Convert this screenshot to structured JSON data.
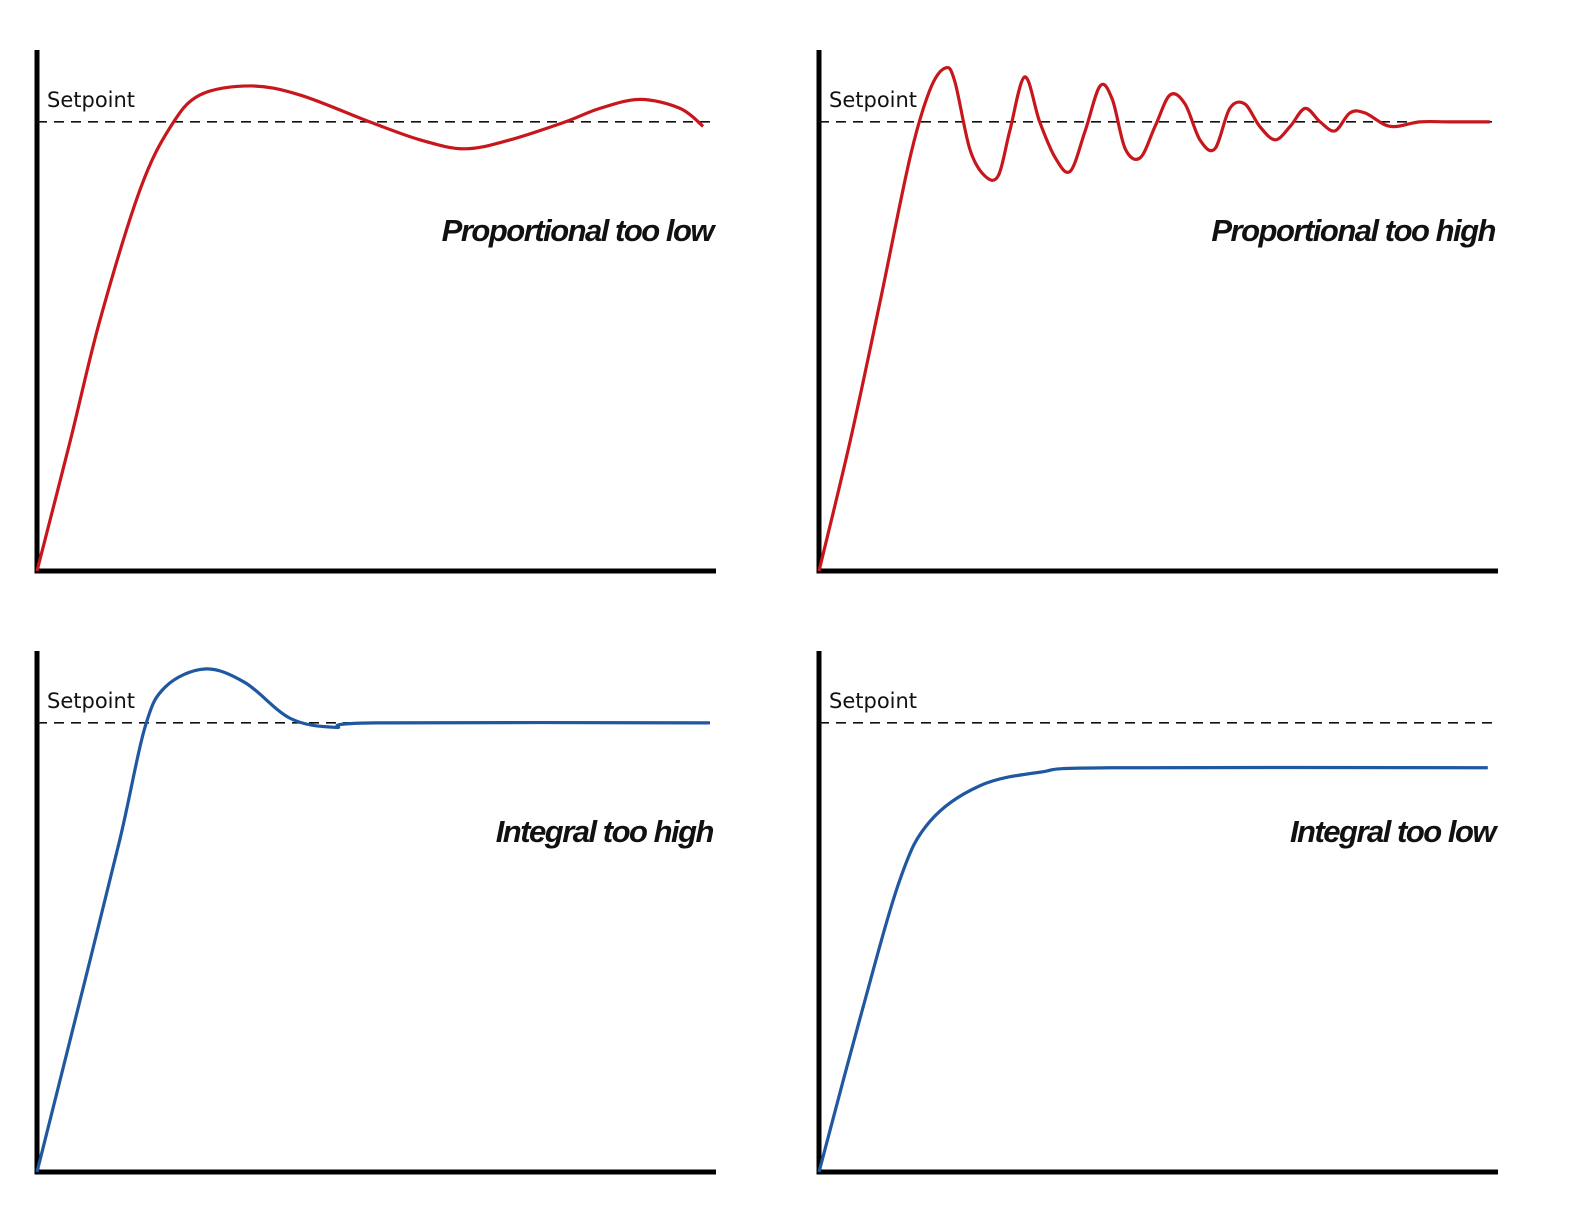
{
  "chart_data": [
    {
      "type": "line",
      "setpoint_label": "Setpoint",
      "setpoint": 1,
      "annotation": "Proportional too low",
      "xlim": [
        0,
        10
      ],
      "ylim": [
        0,
        1.16
      ],
      "x": [
        0,
        0.49,
        0.93,
        1.52,
        1.97,
        2.4,
        3.14,
        3.87,
        4.9,
        5.64,
        6.3,
        6.97,
        7.78,
        8.29,
        8.88,
        9.47,
        9.81
      ],
      "series": [
        {
          "color": "#c8161d",
          "values": [
            0,
            0.29,
            0.56,
            0.85,
            0.99,
            1.06,
            1.08,
            1.06,
            1.0,
            0.96,
            0.94,
            0.96,
            1.0,
            1.03,
            1.05,
            1.03,
            0.99
          ]
        }
      ]
    },
    {
      "type": "line",
      "setpoint_label": "Setpoint",
      "setpoint": 1,
      "annotation": "Proportional too high",
      "xlim": [
        0,
        10
      ],
      "ylim": [
        0,
        1.16
      ],
      "x": [
        0,
        0.46,
        0.9,
        1.34,
        1.63,
        1.86,
        2.0,
        2.22,
        2.44,
        2.64,
        2.81,
        3.03,
        3.25,
        3.48,
        3.7,
        3.92,
        4.14,
        4.32,
        4.51,
        4.73,
        4.95,
        5.17,
        5.39,
        5.61,
        5.83,
        6.05,
        6.27,
        6.49,
        6.72,
        6.94,
        7.16,
        7.38,
        7.6,
        7.82,
        8.04,
        8.41,
        8.85,
        9.29,
        9.88
      ],
      "series": [
        {
          "color": "#c8161d",
          "values": [
            0,
            0.29,
            0.6,
            0.92,
            1.07,
            1.12,
            1.09,
            0.94,
            0.88,
            0.88,
            0.98,
            1.1,
            1.0,
            0.92,
            0.89,
            0.98,
            1.08,
            1.05,
            0.94,
            0.92,
            0.99,
            1.06,
            1.04,
            0.96,
            0.94,
            1.03,
            1.04,
            0.99,
            0.96,
            0.99,
            1.03,
            1.0,
            0.98,
            1.02,
            1.02,
            0.99,
            1.0,
            1.0,
            1.0
          ]
        }
      ]
    },
    {
      "type": "line",
      "setpoint_label": "Setpoint",
      "setpoint": 1,
      "annotation": "Integral too high",
      "xlim": [
        0,
        10
      ],
      "ylim": [
        0,
        1.16
      ],
      "x": [
        0,
        0.63,
        1.22,
        1.59,
        1.89,
        2.47,
        3.06,
        3.73,
        4.39,
        4.98,
        9.91
      ],
      "series": [
        {
          "color": "#1f57a0",
          "values": [
            0,
            0.38,
            0.74,
            0.99,
            1.08,
            1.12,
            1.09,
            1.01,
            0.99,
            1.0,
            1.0
          ]
        }
      ]
    },
    {
      "type": "line",
      "setpoint_label": "Setpoint",
      "setpoint": 1,
      "annotation": "Integral too low",
      "xlim": [
        0,
        10
      ],
      "ylim": [
        0,
        1.16
      ],
      "x": [
        0,
        0.6,
        1.19,
        1.63,
        2.37,
        3.25,
        4.29,
        9.85
      ],
      "series": [
        {
          "color": "#1f57a0",
          "values": [
            0,
            0.34,
            0.65,
            0.78,
            0.86,
            0.89,
            0.9,
            0.9
          ]
        }
      ]
    }
  ]
}
